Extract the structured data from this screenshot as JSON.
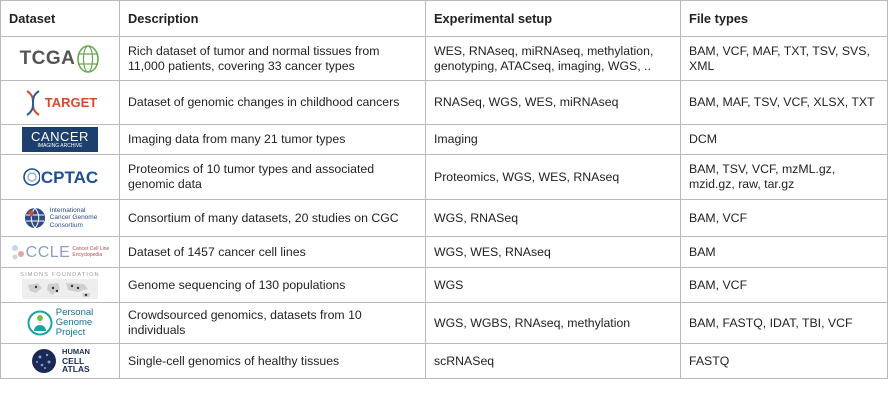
{
  "headers": {
    "dataset": "Dataset",
    "description": "Description",
    "setup": "Experimental setup",
    "files": "File types"
  },
  "rows": [
    {
      "logo": "TCGA",
      "logo_icon": "globe-icon",
      "description": "Rich dataset of tumor and normal tissues from 11,000 patients, covering 33 cancer types",
      "setup": "WES, RNAseq, miRNAseq, methylation, genotyping, ATACseq, imaging, WGS, ..",
      "files": "BAM, VCF, MAF, TXT, TSV, SVS, XML"
    },
    {
      "logo": "TARGET",
      "logo_icon": "dna-helix-icon",
      "description": "Dataset of genomic changes in childhood cancers",
      "setup": "RNASeq, WGS, WES, miRNAseq",
      "files": "BAM, MAF, TSV, VCF, XLSX, TXT"
    },
    {
      "logo": "CANCER",
      "logo_sub": "IMAGING ARCHIVE",
      "description": "Imaging data from many 21 tumor types",
      "setup": "Imaging",
      "files": "DCM"
    },
    {
      "logo": "CPTAC",
      "logo_icon": "circle-logo-icon",
      "description": "Proteomics of 10 tumor types and associated genomic data",
      "setup": "Proteomics, WGS, WES, RNAseq",
      "files": "BAM, TSV, VCF, mzML.gz, mzid.gz, raw, tar.gz"
    },
    {
      "logo_lines": [
        "International",
        "Cancer Genome",
        "Consortium"
      ],
      "logo_icon": "globe-icon",
      "description": "Consortium of many datasets, 20 studies on CGC",
      "setup": "WGS, RNASeq",
      "files": "BAM, VCF"
    },
    {
      "logo": "CCLE",
      "logo_sub_lines": [
        "Cancer Cell Line",
        "Encyclopedia"
      ],
      "description": "Dataset of 1457 cancer cell lines",
      "setup": "WGS, WES, RNAseq",
      "files": "BAM"
    },
    {
      "logo": "SIMONS FOUNDATION",
      "logo_icon": "world-map-icon",
      "description": "Genome sequencing of 130 populations",
      "setup": "WGS",
      "files": "BAM, VCF"
    },
    {
      "logo_lines": [
        "Personal",
        "Genome",
        "Project"
      ],
      "logo_icon": "person-icon",
      "description": "Crowdsourced genomics, datasets from 10 individuals",
      "setup": "WGS, WGBS, RNAseq, methylation",
      "files": "BAM, FASTQ, IDAT, TBI, VCF"
    },
    {
      "logo_lines": [
        "HUMAN",
        "CELL",
        "ATLAS"
      ],
      "logo_icon": "cell-sphere-icon",
      "description": "Single-cell genomics of healthy tissues",
      "setup": "scRNASeq",
      "files": "FASTQ"
    }
  ],
  "colors": {
    "grid": "#b9b9b9",
    "tcga_text": "#555555",
    "tcga_globe": "#6aa84f",
    "target_red": "#d64a2b",
    "target_blue": "#2c5d8f",
    "tcia_blue": "#1c3f6e",
    "cptac_blue": "#1f4e96",
    "icgc_blue": "#2b4a86",
    "ccle_blue": "#4a6fa5",
    "pgp_teal": "#1aa3a3",
    "hca_dark": "#1b2a55"
  }
}
